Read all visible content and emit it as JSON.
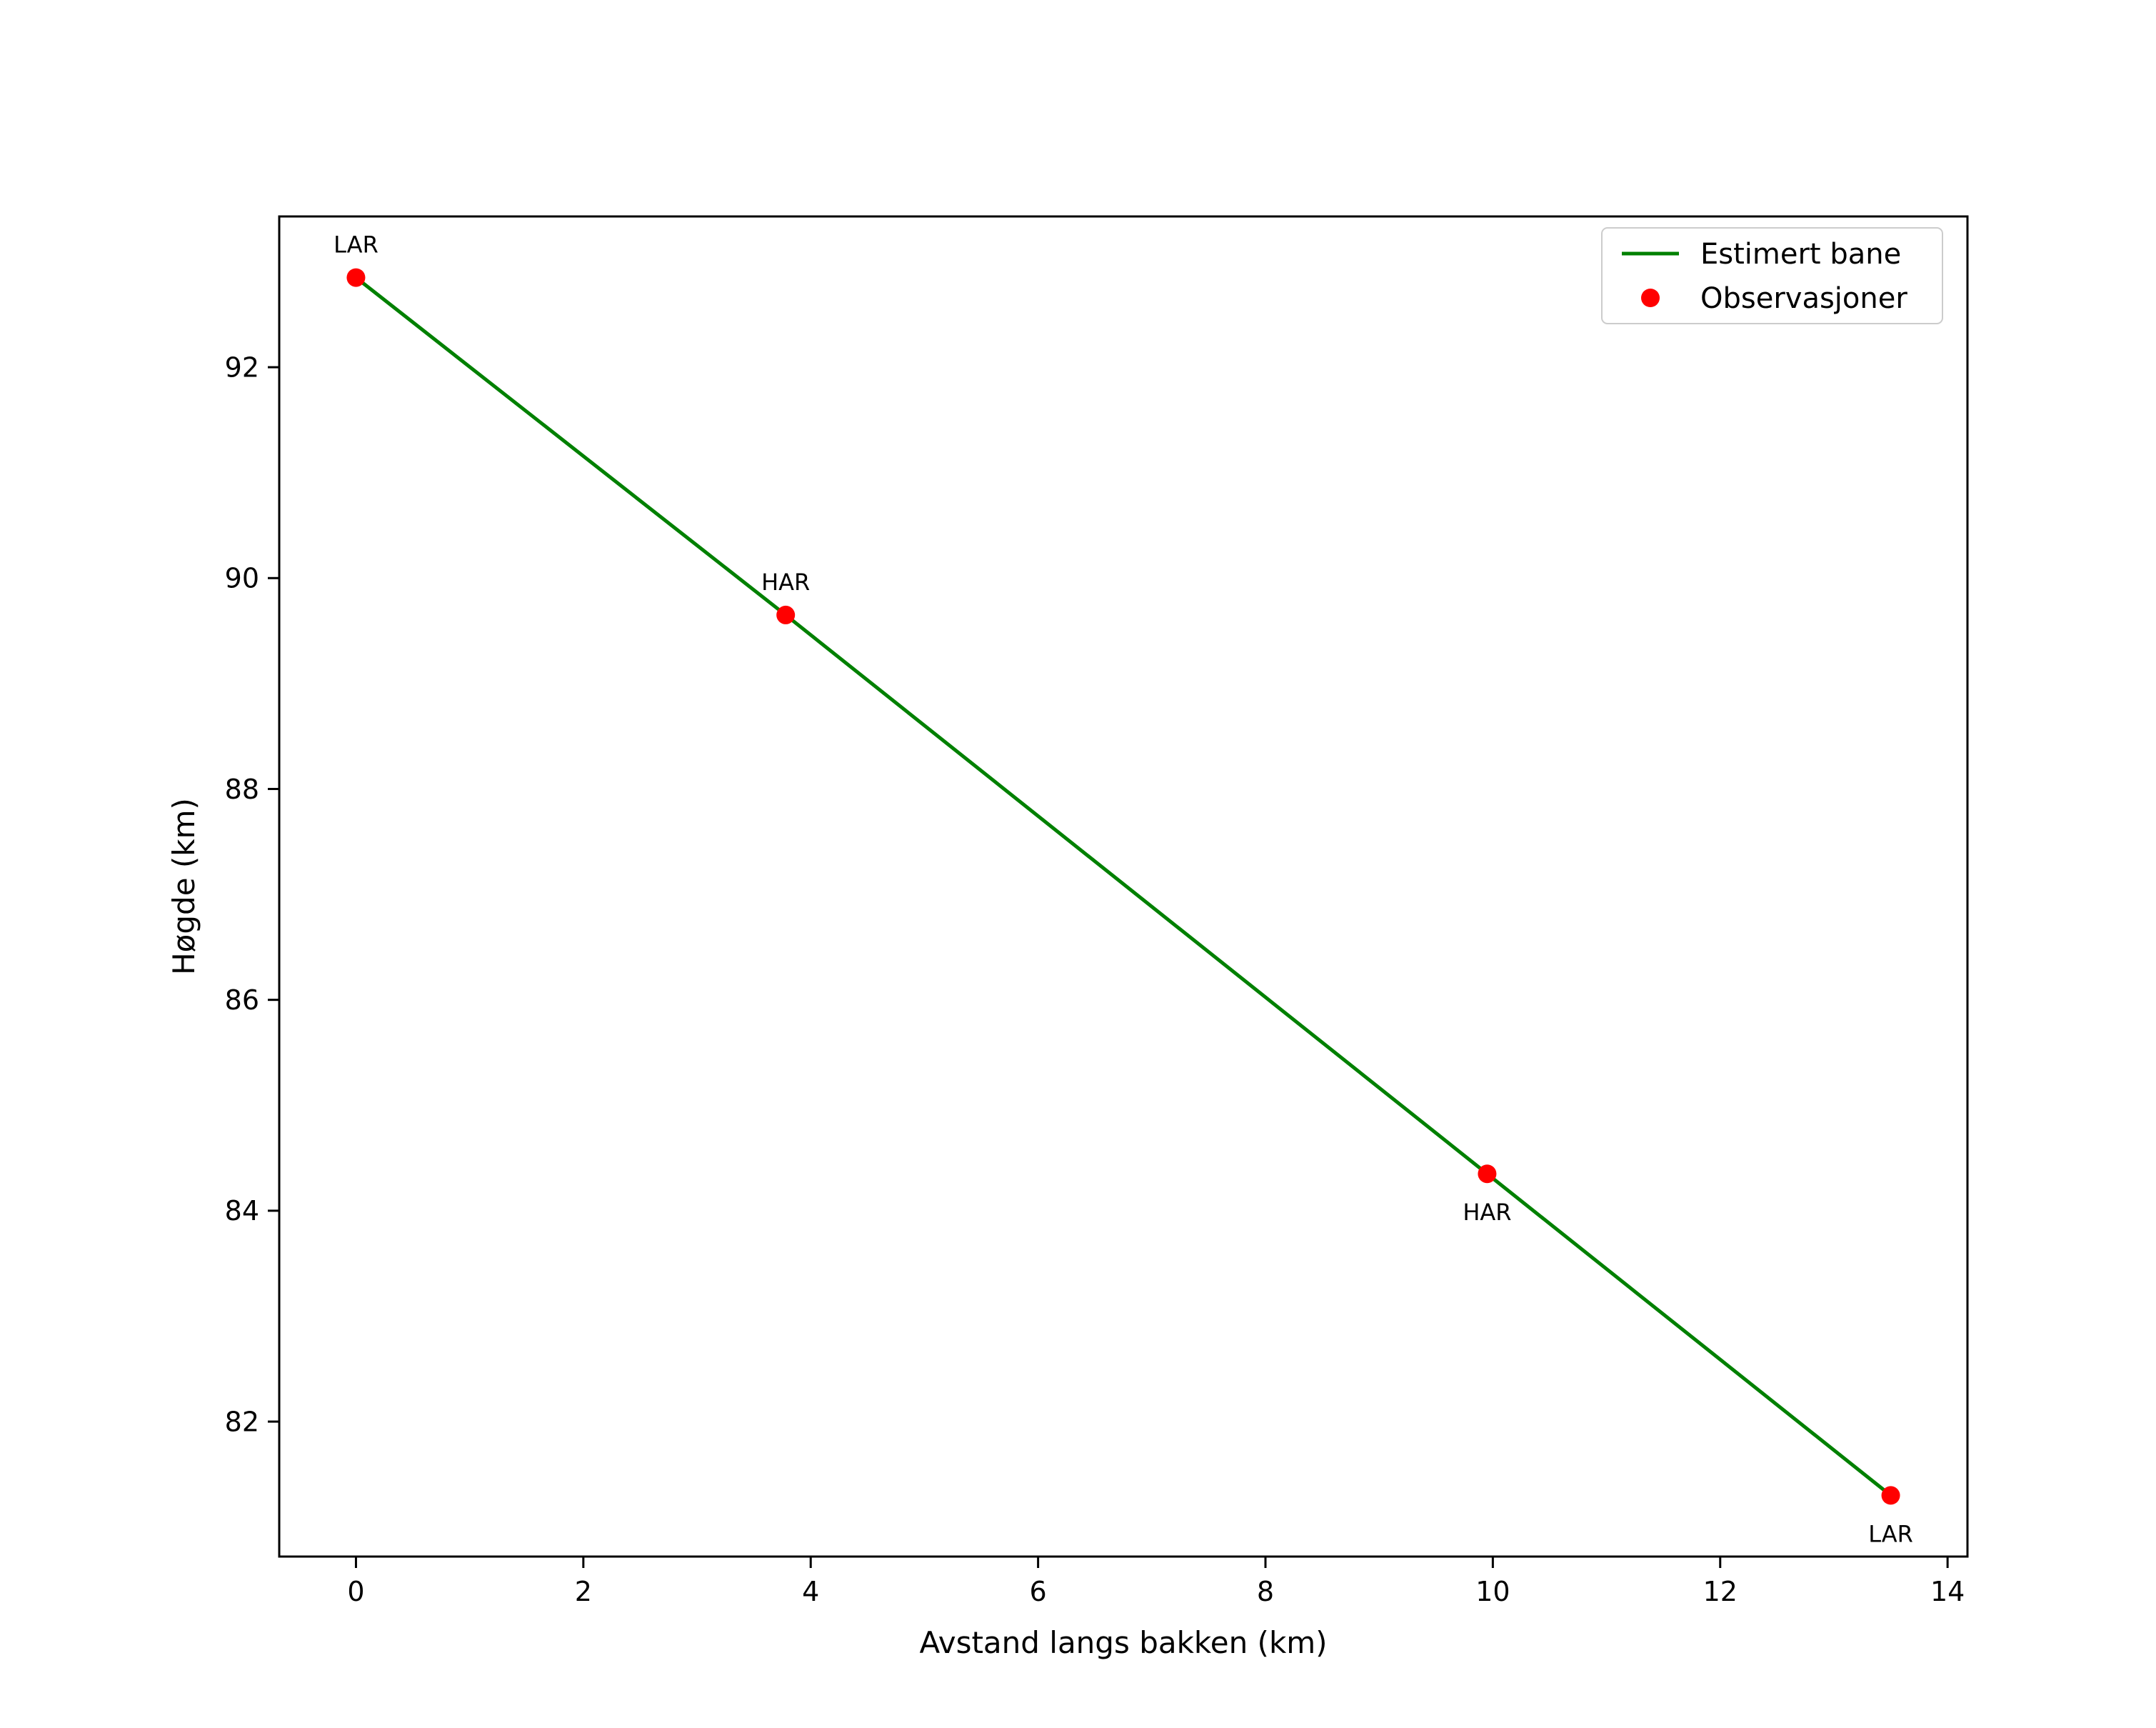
{
  "figure": {
    "background": "#ffffff"
  },
  "chart_data": {
    "type": "line",
    "title": "",
    "xlabel": "Avstand langs bakken (km)",
    "ylabel": "Høgde (km)",
    "xlim": [
      -0.675,
      14.175
    ],
    "ylim": [
      80.72,
      93.43
    ],
    "xticks": [
      "0",
      "2",
      "4",
      "6",
      "8",
      "10",
      "12",
      "14"
    ],
    "xtick_values": [
      0,
      2,
      4,
      6,
      8,
      10,
      12,
      14
    ],
    "yticks": [
      "82",
      "84",
      "86",
      "88",
      "90",
      "92"
    ],
    "ytick_values": [
      82,
      84,
      86,
      88,
      90,
      92
    ],
    "grid": false,
    "colors": {
      "line": "#008000",
      "marker": "#ff0000",
      "spine": "#000000",
      "legend_border": "#cccccc"
    },
    "legend": {
      "position": "upper right",
      "entries": [
        {
          "label": "Estimert bane",
          "type": "line",
          "color": "#008000"
        },
        {
          "label": "Observasjoner",
          "type": "marker",
          "color": "#ff0000"
        }
      ]
    },
    "series": [
      {
        "name": "Estimert bane",
        "type": "line",
        "color": "#008000",
        "x": [
          0,
          3.78,
          9.95,
          13.5
        ],
        "y": [
          92.85,
          89.65,
          84.35,
          81.3
        ]
      },
      {
        "name": "Observasjoner",
        "type": "scatter",
        "color": "#ff0000",
        "points": [
          {
            "x": 0,
            "y": 92.85,
            "label": "LAR",
            "label_pos": "above"
          },
          {
            "x": 3.78,
            "y": 89.65,
            "label": "HAR",
            "label_pos": "above"
          },
          {
            "x": 9.95,
            "y": 84.35,
            "label": "HAR",
            "label_pos": "below"
          },
          {
            "x": 13.5,
            "y": 81.3,
            "label": "LAR",
            "label_pos": "below"
          }
        ]
      }
    ]
  }
}
